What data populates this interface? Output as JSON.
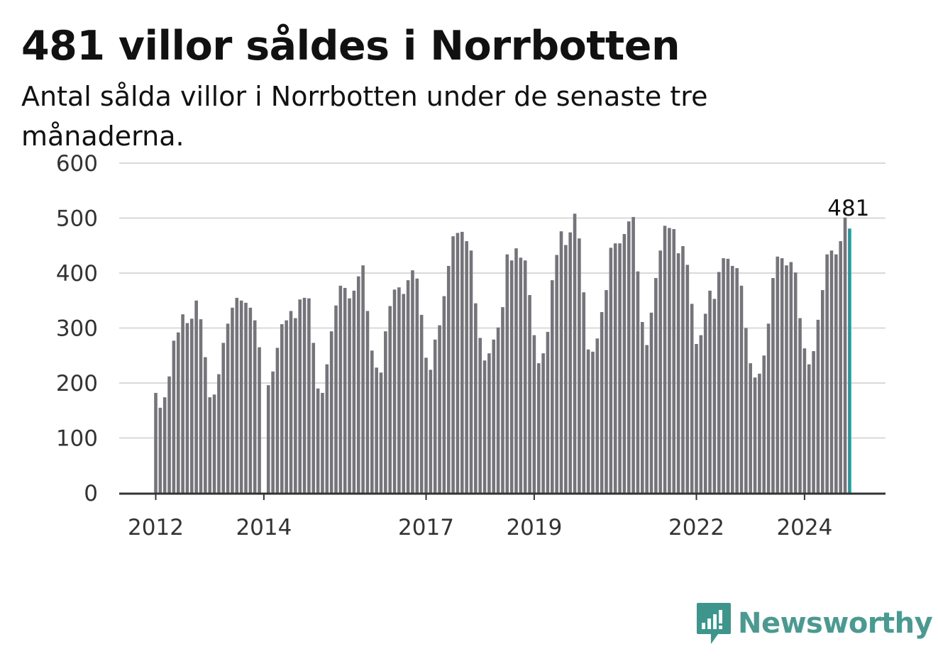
{
  "title": "481 villor såldes i Norrbotten",
  "subtitle": "Antal sålda villor i Norrbotten under de senaste tre månaderna.",
  "brand": {
    "name": "Newsworthy",
    "color": "#3d958c"
  },
  "colors": {
    "bar": "#74747a",
    "highlight": "#1a9e9e",
    "grid": "#d9d9d9",
    "axis": "#333333"
  },
  "chart_data": {
    "type": "bar",
    "title": "481 villor såldes i Norrbotten",
    "subtitle": "Antal sålda villor i Norrbotten under de senaste tre månaderna.",
    "xlabel": "",
    "ylabel": "",
    "ylim": [
      0,
      600
    ],
    "yticks": [
      0,
      100,
      200,
      300,
      400,
      500,
      600
    ],
    "x_start": "2012-01",
    "x_ticks": [
      {
        "label": "2012",
        "date": "2012-01"
      },
      {
        "label": "2014",
        "date": "2014-01"
      },
      {
        "label": "2017",
        "date": "2017-01"
      },
      {
        "label": "2019",
        "date": "2019-01"
      },
      {
        "label": "2022",
        "date": "2022-01"
      },
      {
        "label": "2024",
        "date": "2024-01"
      }
    ],
    "grid": true,
    "highlight_last": true,
    "last_value_label": "481",
    "values": [
      182,
      155,
      174,
      212,
      277,
      292,
      325,
      309,
      317,
      350,
      316,
      247,
      174,
      179,
      216,
      273,
      308,
      337,
      355,
      350,
      346,
      337,
      314,
      265,
      null,
      196,
      221,
      264,
      307,
      314,
      331,
      318,
      352,
      355,
      354,
      273,
      190,
      182,
      234,
      294,
      341,
      377,
      373,
      354,
      368,
      394,
      414,
      331,
      259,
      228,
      219,
      294,
      340,
      370,
      374,
      362,
      387,
      405,
      390,
      324,
      246,
      224,
      279,
      305,
      358,
      413,
      467,
      473,
      475,
      458,
      441,
      345,
      282,
      241,
      254,
      279,
      301,
      338,
      434,
      423,
      445,
      428,
      423,
      360,
      287,
      236,
      254,
      293,
      387,
      433,
      476,
      451,
      474,
      508,
      463,
      365,
      261,
      257,
      281,
      329,
      369,
      446,
      454,
      454,
      471,
      494,
      502,
      403,
      311,
      269,
      328,
      391,
      441,
      486,
      482,
      480,
      436,
      449,
      415,
      344,
      271,
      287,
      326,
      368,
      353,
      402,
      427,
      426,
      413,
      409,
      377,
      300,
      236,
      210,
      217,
      250,
      308,
      391,
      430,
      427,
      414,
      420,
      401,
      318,
      263,
      234,
      258,
      315,
      369,
      434,
      441,
      434,
      458,
      501,
      481
    ]
  }
}
